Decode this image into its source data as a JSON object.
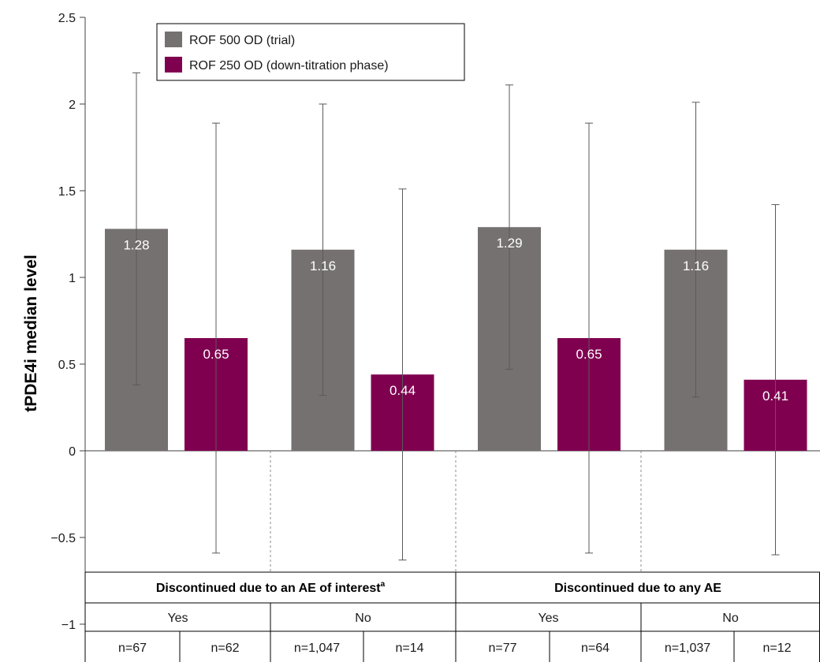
{
  "chart_data": {
    "type": "bar",
    "ylabel": "tPDE4i median level",
    "ylim": [
      -1,
      2.5
    ],
    "yticks": [
      "2.5",
      "2",
      "1.5",
      "1",
      "0.5",
      "0",
      "−0.5",
      "−1"
    ],
    "grid": false,
    "legend_position": "top-left",
    "series": [
      {
        "name": "ROF 500 OD (trial)",
        "color": "#767171",
        "values": [
          1.28,
          1.16,
          1.29,
          1.16
        ],
        "labels": [
          "1.28",
          "1.16",
          "1.29",
          "1.16"
        ],
        "error_low": [
          0.38,
          0.32,
          0.47,
          0.31
        ],
        "error_high": [
          2.18,
          2.0,
          2.11,
          2.01
        ]
      },
      {
        "name": "ROF 250 OD (down-titration phase)",
        "color": "#800050",
        "values": [
          0.65,
          0.44,
          0.65,
          0.41
        ],
        "labels": [
          "0.65",
          "0.44",
          "0.65",
          "0.41"
        ],
        "error_low": [
          -0.59,
          -0.63,
          -0.59,
          -0.6
        ],
        "error_high": [
          1.89,
          1.51,
          1.89,
          1.42
        ]
      }
    ],
    "table": {
      "headers": [
        {
          "text": "Discontinued due to an AE of interest",
          "sup": "a"
        },
        {
          "text": "Discontinued due to any AE",
          "sup": ""
        }
      ],
      "subgroups": [
        "Yes",
        "No",
        "Yes",
        "No"
      ],
      "n": [
        "n=67",
        "n=62",
        "n=1,047",
        "n=14",
        "n=77",
        "n=64",
        "n=1,037",
        "n=12"
      ]
    }
  }
}
